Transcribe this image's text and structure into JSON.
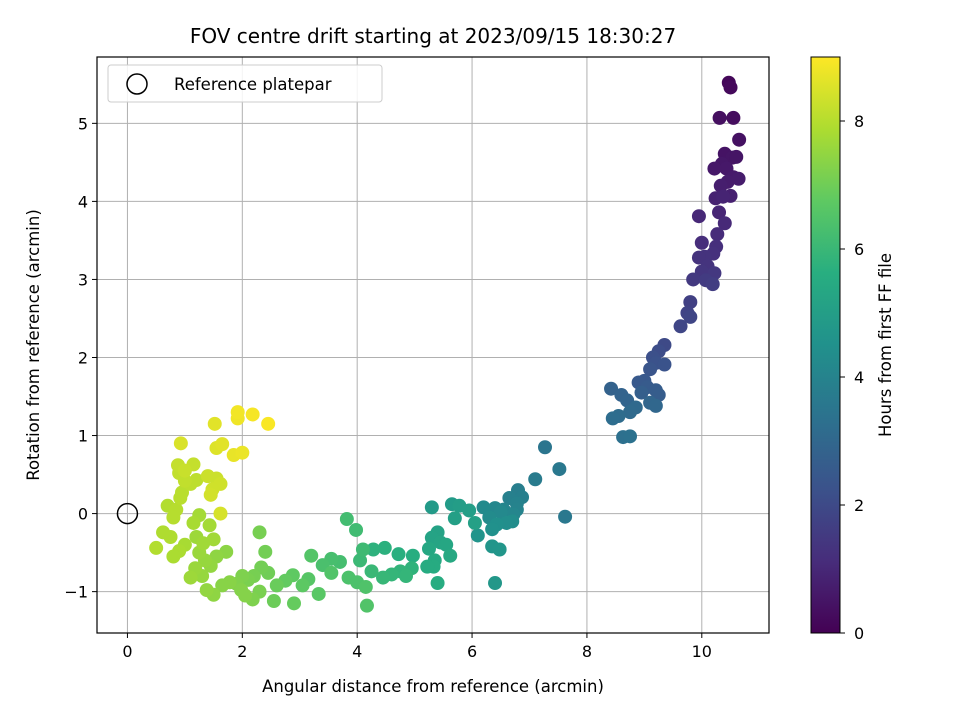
{
  "chart_data": {
    "type": "scatter",
    "title": "FOV centre drift starting at 2023/09/15 18:30:27",
    "xlabel": "Angular distance from reference (arcmin)",
    "ylabel": "Rotation from reference (arcmin)",
    "colorbar_label": "Hours from first FF file",
    "colormap": "viridis",
    "xlim": [
      -0.53,
      11.17
    ],
    "ylim": [
      -1.53,
      5.85
    ],
    "clim": [
      0,
      9
    ],
    "x_ticks": [
      0,
      2,
      4,
      6,
      8,
      10
    ],
    "y_ticks": [
      -1,
      0,
      1,
      2,
      3,
      4,
      5
    ],
    "colorbar_ticks": [
      0,
      2,
      4,
      6,
      8
    ],
    "grid": true,
    "legend": {
      "placement": "top-left",
      "entries": [
        "Reference platepar"
      ]
    },
    "reference_point": {
      "x": 0,
      "y": 0,
      "label": "Reference platepar"
    },
    "points": [
      {
        "x": 10.47,
        "y": 5.52,
        "t": 0.15
      },
      {
        "x": 10.5,
        "y": 5.46,
        "t": 0.2
      },
      {
        "x": 10.55,
        "y": 5.07,
        "t": 0.3
      },
      {
        "x": 10.31,
        "y": 5.07,
        "t": 0.35
      },
      {
        "x": 10.65,
        "y": 4.79,
        "t": 0.4
      },
      {
        "x": 10.4,
        "y": 4.61,
        "t": 0.45
      },
      {
        "x": 10.53,
        "y": 4.56,
        "t": 0.5
      },
      {
        "x": 10.6,
        "y": 4.57,
        "t": 0.5
      },
      {
        "x": 10.35,
        "y": 4.48,
        "t": 0.55
      },
      {
        "x": 10.43,
        "y": 4.42,
        "t": 0.6
      },
      {
        "x": 10.22,
        "y": 4.42,
        "t": 0.6
      },
      {
        "x": 10.55,
        "y": 4.31,
        "t": 0.65
      },
      {
        "x": 10.64,
        "y": 4.29,
        "t": 0.7
      },
      {
        "x": 10.45,
        "y": 4.25,
        "t": 0.7
      },
      {
        "x": 10.33,
        "y": 4.2,
        "t": 0.75
      },
      {
        "x": 10.5,
        "y": 4.07,
        "t": 0.8
      },
      {
        "x": 10.24,
        "y": 4.04,
        "t": 0.85
      },
      {
        "x": 10.37,
        "y": 4.06,
        "t": 0.9
      },
      {
        "x": 10.3,
        "y": 3.86,
        "t": 0.95
      },
      {
        "x": 9.95,
        "y": 3.81,
        "t": 1.0
      },
      {
        "x": 10.4,
        "y": 3.72,
        "t": 1.05
      },
      {
        "x": 10.27,
        "y": 3.58,
        "t": 1.1
      },
      {
        "x": 10.0,
        "y": 3.47,
        "t": 1.15
      },
      {
        "x": 10.25,
        "y": 3.42,
        "t": 1.2
      },
      {
        "x": 10.2,
        "y": 3.33,
        "t": 1.25
      },
      {
        "x": 10.05,
        "y": 3.29,
        "t": 1.3
      },
      {
        "x": 9.95,
        "y": 3.28,
        "t": 1.3
      },
      {
        "x": 10.1,
        "y": 3.17,
        "t": 1.35
      },
      {
        "x": 10.0,
        "y": 3.1,
        "t": 1.4
      },
      {
        "x": 10.22,
        "y": 3.08,
        "t": 1.45
      },
      {
        "x": 9.85,
        "y": 3.0,
        "t": 1.5
      },
      {
        "x": 10.07,
        "y": 2.99,
        "t": 1.55
      },
      {
        "x": 10.19,
        "y": 2.94,
        "t": 1.6
      },
      {
        "x": 9.8,
        "y": 2.71,
        "t": 1.7
      },
      {
        "x": 9.75,
        "y": 2.57,
        "t": 1.8
      },
      {
        "x": 9.8,
        "y": 2.52,
        "t": 1.85
      },
      {
        "x": 9.63,
        "y": 2.4,
        "t": 1.9
      },
      {
        "x": 9.35,
        "y": 2.16,
        "t": 2.0
      },
      {
        "x": 9.25,
        "y": 2.08,
        "t": 2.1
      },
      {
        "x": 9.15,
        "y": 2.0,
        "t": 2.2
      },
      {
        "x": 9.2,
        "y": 1.93,
        "t": 2.25
      },
      {
        "x": 9.35,
        "y": 1.91,
        "t": 2.3
      },
      {
        "x": 9.1,
        "y": 1.85,
        "t": 2.35
      },
      {
        "x": 9.0,
        "y": 1.7,
        "t": 2.45
      },
      {
        "x": 8.9,
        "y": 1.68,
        "t": 2.5
      },
      {
        "x": 9.05,
        "y": 1.62,
        "t": 2.55
      },
      {
        "x": 9.2,
        "y": 1.58,
        "t": 2.6
      },
      {
        "x": 9.25,
        "y": 1.52,
        "t": 2.65
      },
      {
        "x": 8.95,
        "y": 1.55,
        "t": 2.7
      },
      {
        "x": 8.42,
        "y": 1.6,
        "t": 2.8
      },
      {
        "x": 8.6,
        "y": 1.52,
        "t": 2.85
      },
      {
        "x": 8.7,
        "y": 1.45,
        "t": 2.9
      },
      {
        "x": 9.1,
        "y": 1.42,
        "t": 2.95
      },
      {
        "x": 9.2,
        "y": 1.38,
        "t": 3.0
      },
      {
        "x": 8.85,
        "y": 1.36,
        "t": 3.05
      },
      {
        "x": 8.75,
        "y": 1.3,
        "t": 3.1
      },
      {
        "x": 8.55,
        "y": 1.25,
        "t": 3.15
      },
      {
        "x": 8.45,
        "y": 1.22,
        "t": 3.2
      },
      {
        "x": 8.63,
        "y": 0.98,
        "t": 3.3
      },
      {
        "x": 8.75,
        "y": 0.99,
        "t": 3.35
      },
      {
        "x": 7.27,
        "y": 0.85,
        "t": 3.5
      },
      {
        "x": 7.52,
        "y": 0.57,
        "t": 3.6
      },
      {
        "x": 7.1,
        "y": 0.44,
        "t": 3.7
      },
      {
        "x": 6.8,
        "y": 0.3,
        "t": 3.8
      },
      {
        "x": 6.87,
        "y": 0.21,
        "t": 3.85
      },
      {
        "x": 6.65,
        "y": 0.2,
        "t": 3.9
      },
      {
        "x": 6.78,
        "y": 0.13,
        "t": 3.95
      },
      {
        "x": 6.78,
        "y": 0.05,
        "t": 4.0
      },
      {
        "x": 6.55,
        "y": 0.05,
        "t": 4.05
      },
      {
        "x": 6.72,
        "y": -0.01,
        "t": 4.1
      },
      {
        "x": 6.4,
        "y": 0.07,
        "t": 4.15
      },
      {
        "x": 6.5,
        "y": 0.02,
        "t": 4.2
      },
      {
        "x": 6.2,
        "y": 0.08,
        "t": 4.25
      },
      {
        "x": 6.3,
        "y": -0.05,
        "t": 4.3
      },
      {
        "x": 6.7,
        "y": -0.1,
        "t": 4.35
      },
      {
        "x": 6.6,
        "y": -0.12,
        "t": 4.4
      },
      {
        "x": 6.43,
        "y": -0.14,
        "t": 4.45
      },
      {
        "x": 7.62,
        "y": -0.04,
        "t": 3.6
      },
      {
        "x": 6.35,
        "y": -0.2,
        "t": 4.5
      },
      {
        "x": 6.1,
        "y": -0.28,
        "t": 4.6
      },
      {
        "x": 6.35,
        "y": -0.42,
        "t": 4.65
      },
      {
        "x": 6.48,
        "y": -0.46,
        "t": 4.7
      },
      {
        "x": 6.4,
        "y": -0.89,
        "t": 4.75
      },
      {
        "x": 5.3,
        "y": 0.08,
        "t": 4.85
      },
      {
        "x": 5.65,
        "y": 0.12,
        "t": 4.9
      },
      {
        "x": 5.78,
        "y": 0.1,
        "t": 4.95
      },
      {
        "x": 5.95,
        "y": 0.04,
        "t": 5.0
      },
      {
        "x": 5.7,
        "y": -0.06,
        "t": 5.05
      },
      {
        "x": 6.05,
        "y": -0.12,
        "t": 5.1
      },
      {
        "x": 5.4,
        "y": -0.24,
        "t": 5.15
      },
      {
        "x": 5.3,
        "y": -0.31,
        "t": 5.2
      },
      {
        "x": 5.45,
        "y": -0.37,
        "t": 5.25
      },
      {
        "x": 5.55,
        "y": -0.4,
        "t": 5.3
      },
      {
        "x": 5.25,
        "y": -0.45,
        "t": 5.35
      },
      {
        "x": 5.62,
        "y": -0.54,
        "t": 5.4
      },
      {
        "x": 5.35,
        "y": -0.6,
        "t": 5.45
      },
      {
        "x": 5.33,
        "y": -0.68,
        "t": 5.5
      },
      {
        "x": 5.22,
        "y": -0.68,
        "t": 5.5
      },
      {
        "x": 5.4,
        "y": -0.89,
        "t": 5.55
      },
      {
        "x": 4.97,
        "y": -0.54,
        "t": 5.6
      },
      {
        "x": 4.72,
        "y": -0.52,
        "t": 5.65
      },
      {
        "x": 4.48,
        "y": -0.44,
        "t": 5.7
      },
      {
        "x": 4.28,
        "y": -0.46,
        "t": 5.75
      },
      {
        "x": 4.95,
        "y": -0.7,
        "t": 5.8
      },
      {
        "x": 4.75,
        "y": -0.74,
        "t": 5.85
      },
      {
        "x": 4.85,
        "y": -0.8,
        "t": 5.9
      },
      {
        "x": 4.6,
        "y": -0.78,
        "t": 5.9
      },
      {
        "x": 4.45,
        "y": -0.82,
        "t": 5.95
      },
      {
        "x": 4.25,
        "y": -0.74,
        "t": 6.0
      },
      {
        "x": 4.05,
        "y": -0.6,
        "t": 6.05
      },
      {
        "x": 4.1,
        "y": -0.46,
        "t": 6.1
      },
      {
        "x": 3.98,
        "y": -0.21,
        "t": 6.15
      },
      {
        "x": 3.82,
        "y": -0.07,
        "t": 6.2
      },
      {
        "x": 3.7,
        "y": -0.62,
        "t": 6.25
      },
      {
        "x": 3.55,
        "y": -0.58,
        "t": 6.3
      },
      {
        "x": 3.4,
        "y": -0.66,
        "t": 6.35
      },
      {
        "x": 3.85,
        "y": -0.82,
        "t": 6.4
      },
      {
        "x": 4.0,
        "y": -0.88,
        "t": 6.4
      },
      {
        "x": 4.15,
        "y": -0.94,
        "t": 6.45
      },
      {
        "x": 4.17,
        "y": -1.18,
        "t": 6.5
      },
      {
        "x": 3.55,
        "y": -0.76,
        "t": 6.5
      },
      {
        "x": 3.2,
        "y": -0.54,
        "t": 6.55
      },
      {
        "x": 3.15,
        "y": -0.84,
        "t": 6.6
      },
      {
        "x": 3.33,
        "y": -1.03,
        "t": 6.65
      },
      {
        "x": 3.05,
        "y": -0.92,
        "t": 6.7
      },
      {
        "x": 2.88,
        "y": -0.79,
        "t": 6.75
      },
      {
        "x": 2.75,
        "y": -0.86,
        "t": 6.8
      },
      {
        "x": 2.9,
        "y": -1.15,
        "t": 6.85
      },
      {
        "x": 2.6,
        "y": -0.92,
        "t": 6.9
      },
      {
        "x": 2.55,
        "y": -1.12,
        "t": 6.95
      },
      {
        "x": 2.45,
        "y": -0.76,
        "t": 7.0
      },
      {
        "x": 2.33,
        "y": -0.69,
        "t": 7.05
      },
      {
        "x": 2.4,
        "y": -0.49,
        "t": 7.05
      },
      {
        "x": 2.3,
        "y": -0.24,
        "t": 7.1
      },
      {
        "x": 2.2,
        "y": -0.8,
        "t": 7.1
      },
      {
        "x": 2.1,
        "y": -0.85,
        "t": 7.15
      },
      {
        "x": 2.3,
        "y": -1.0,
        "t": 7.15
      },
      {
        "x": 2.18,
        "y": -1.1,
        "t": 7.2
      },
      {
        "x": 2.0,
        "y": -0.8,
        "t": 7.2
      },
      {
        "x": 1.9,
        "y": -0.9,
        "t": 7.25
      },
      {
        "x": 1.98,
        "y": -0.98,
        "t": 7.3
      },
      {
        "x": 2.05,
        "y": -1.05,
        "t": 7.3
      },
      {
        "x": 1.78,
        "y": -0.88,
        "t": 7.35
      },
      {
        "x": 1.65,
        "y": -0.92,
        "t": 7.35
      },
      {
        "x": 1.72,
        "y": -0.49,
        "t": 7.4
      },
      {
        "x": 1.55,
        "y": -0.55,
        "t": 7.45
      },
      {
        "x": 1.5,
        "y": -1.04,
        "t": 7.45
      },
      {
        "x": 1.38,
        "y": -0.98,
        "t": 7.5
      },
      {
        "x": 1.45,
        "y": -0.67,
        "t": 7.5
      },
      {
        "x": 1.3,
        "y": -0.8,
        "t": 7.55
      },
      {
        "x": 1.35,
        "y": -0.6,
        "t": 7.55
      },
      {
        "x": 1.25,
        "y": -0.5,
        "t": 7.6
      },
      {
        "x": 1.18,
        "y": -0.7,
        "t": 7.6
      },
      {
        "x": 1.1,
        "y": -0.82,
        "t": 7.65
      },
      {
        "x": 1.2,
        "y": -0.3,
        "t": 7.65
      },
      {
        "x": 1.32,
        "y": -0.38,
        "t": 7.7
      },
      {
        "x": 1.5,
        "y": -0.33,
        "t": 7.7
      },
      {
        "x": 1.43,
        "y": -0.15,
        "t": 7.75
      },
      {
        "x": 1.25,
        "y": -0.02,
        "t": 7.75
      },
      {
        "x": 1.15,
        "y": -0.12,
        "t": 7.8
      },
      {
        "x": 1.0,
        "y": -0.4,
        "t": 7.8
      },
      {
        "x": 0.9,
        "y": -0.48,
        "t": 7.85
      },
      {
        "x": 0.8,
        "y": -0.55,
        "t": 7.85
      },
      {
        "x": 0.75,
        "y": -0.3,
        "t": 7.9
      },
      {
        "x": 0.62,
        "y": -0.24,
        "t": 7.9
      },
      {
        "x": 0.5,
        "y": -0.44,
        "t": 7.95
      },
      {
        "x": 0.7,
        "y": 0.1,
        "t": 7.95
      },
      {
        "x": 0.85,
        "y": 0.05,
        "t": 8.0
      },
      {
        "x": 0.8,
        "y": -0.05,
        "t": 8.0
      },
      {
        "x": 0.92,
        "y": 0.2,
        "t": 8.05
      },
      {
        "x": 0.95,
        "y": 0.27,
        "t": 8.05
      },
      {
        "x": 1.1,
        "y": 0.38,
        "t": 8.1
      },
      {
        "x": 1.2,
        "y": 0.43,
        "t": 8.1
      },
      {
        "x": 1.0,
        "y": 0.42,
        "t": 8.15
      },
      {
        "x": 0.9,
        "y": 0.52,
        "t": 8.15
      },
      {
        "x": 0.88,
        "y": 0.62,
        "t": 8.2
      },
      {
        "x": 1.15,
        "y": 0.63,
        "t": 8.2
      },
      {
        "x": 1.0,
        "y": 0.55,
        "t": 8.25
      },
      {
        "x": 1.4,
        "y": 0.48,
        "t": 8.3
      },
      {
        "x": 1.55,
        "y": 0.45,
        "t": 8.3
      },
      {
        "x": 1.62,
        "y": 0.38,
        "t": 8.35
      },
      {
        "x": 1.48,
        "y": 0.31,
        "t": 8.35
      },
      {
        "x": 1.45,
        "y": 0.24,
        "t": 8.4
      },
      {
        "x": 1.62,
        "y": 0.0,
        "t": 8.45
      },
      {
        "x": 0.93,
        "y": 0.9,
        "t": 8.5
      },
      {
        "x": 1.55,
        "y": 0.84,
        "t": 8.55
      },
      {
        "x": 1.65,
        "y": 0.89,
        "t": 8.6
      },
      {
        "x": 1.52,
        "y": 1.15,
        "t": 8.6
      },
      {
        "x": 1.85,
        "y": 0.75,
        "t": 8.7
      },
      {
        "x": 2.0,
        "y": 0.78,
        "t": 8.75
      },
      {
        "x": 1.92,
        "y": 1.22,
        "t": 8.8
      },
      {
        "x": 1.92,
        "y": 1.3,
        "t": 8.85
      },
      {
        "x": 2.18,
        "y": 1.27,
        "t": 8.9
      },
      {
        "x": 2.45,
        "y": 1.15,
        "t": 8.95
      }
    ]
  }
}
